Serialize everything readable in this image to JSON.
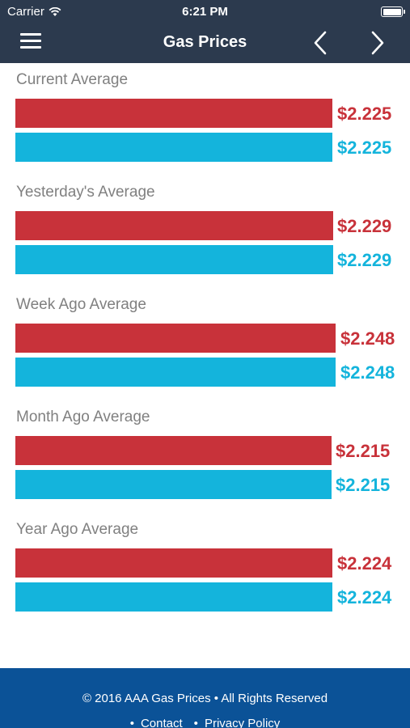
{
  "status_bar": {
    "carrier": "Carrier",
    "time": "6:21 PM"
  },
  "header": {
    "title": "Gas Prices"
  },
  "colors": {
    "regular": "#c8323a",
    "diesel": "#14b4dc",
    "header_bg": "#2c3a4e",
    "footer_bg": "#0b5297"
  },
  "sections": [
    {
      "label": "Current Average",
      "regular": "$2.225",
      "diesel": "$2.225"
    },
    {
      "label": "Yesterday's Average",
      "regular": "$2.229",
      "diesel": "$2.229"
    },
    {
      "label": "Week Ago Average",
      "regular": "$2.248",
      "diesel": "$2.248"
    },
    {
      "label": "Month Ago Average",
      "regular": "$2.215",
      "diesel": "$2.215"
    },
    {
      "label": "Year Ago Average",
      "regular": "$2.224",
      "diesel": "$2.224"
    }
  ],
  "footer": {
    "copyright": "© 2016 AAA Gas Prices • All Rights Reserved",
    "links": [
      "Contact",
      "Privacy Policy"
    ]
  }
}
